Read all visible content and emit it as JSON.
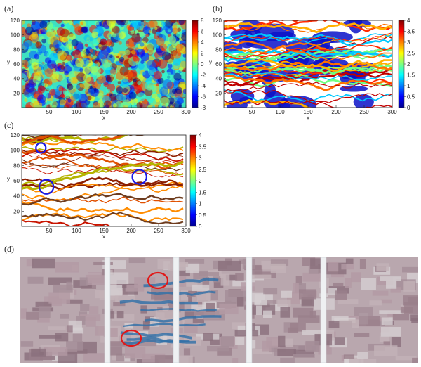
{
  "chart_data": [
    {
      "panel": "(a)",
      "type": "heatmap",
      "xlabel": "x",
      "ylabel": "y",
      "xlim": [
        0,
        300
      ],
      "ylim": [
        0,
        120
      ],
      "xticks": [
        50,
        100,
        150,
        200,
        250,
        300
      ],
      "yticks": [
        20,
        40,
        60,
        80,
        100,
        120
      ],
      "colorbar_ticks": [
        "8",
        "6",
        "4",
        "2",
        "0",
        "-2",
        "-4",
        "-6",
        "-8"
      ],
      "colorbar_range": [
        -8,
        8
      ]
    },
    {
      "panel": "(b)",
      "type": "heatmap",
      "xlabel": "x",
      "ylabel": "y",
      "xlim": [
        0,
        300
      ],
      "ylim": [
        0,
        120
      ],
      "xticks": [
        50,
        100,
        150,
        200,
        250,
        300
      ],
      "yticks": [
        20,
        40,
        60,
        80,
        100,
        120
      ],
      "colorbar_ticks": [
        "4",
        "3.5",
        "3",
        "2.5",
        "2",
        "1.5",
        "1",
        "0.5",
        "0"
      ],
      "colorbar_range": [
        0,
        4
      ]
    },
    {
      "panel": "(c)",
      "type": "heatmap",
      "xlabel": "x",
      "ylabel": "y",
      "xlim": [
        0,
        300
      ],
      "ylim": [
        0,
        120
      ],
      "xticks": [
        50,
        100,
        150,
        200,
        250,
        300
      ],
      "yticks": [
        20,
        40,
        60,
        80,
        100,
        120
      ],
      "colorbar_ticks": [
        "4",
        "3.5",
        "3",
        "2.5",
        "2",
        "1.5",
        "1",
        "0.5",
        "0"
      ],
      "colorbar_range": [
        0,
        4
      ],
      "highlight_circles": [
        {
          "x": 35,
          "y": 103,
          "r_units": 9,
          "color": "#1a1ae6"
        },
        {
          "x": 45,
          "y": 52,
          "r_units": 13,
          "color": "#1a1ae6"
        },
        {
          "x": 215,
          "y": 65,
          "r_units": 13,
          "color": "#1a1ae6"
        }
      ]
    },
    {
      "panel": "(d)",
      "type": "photo",
      "highlight_circles_color": "#e01818"
    }
  ]
}
